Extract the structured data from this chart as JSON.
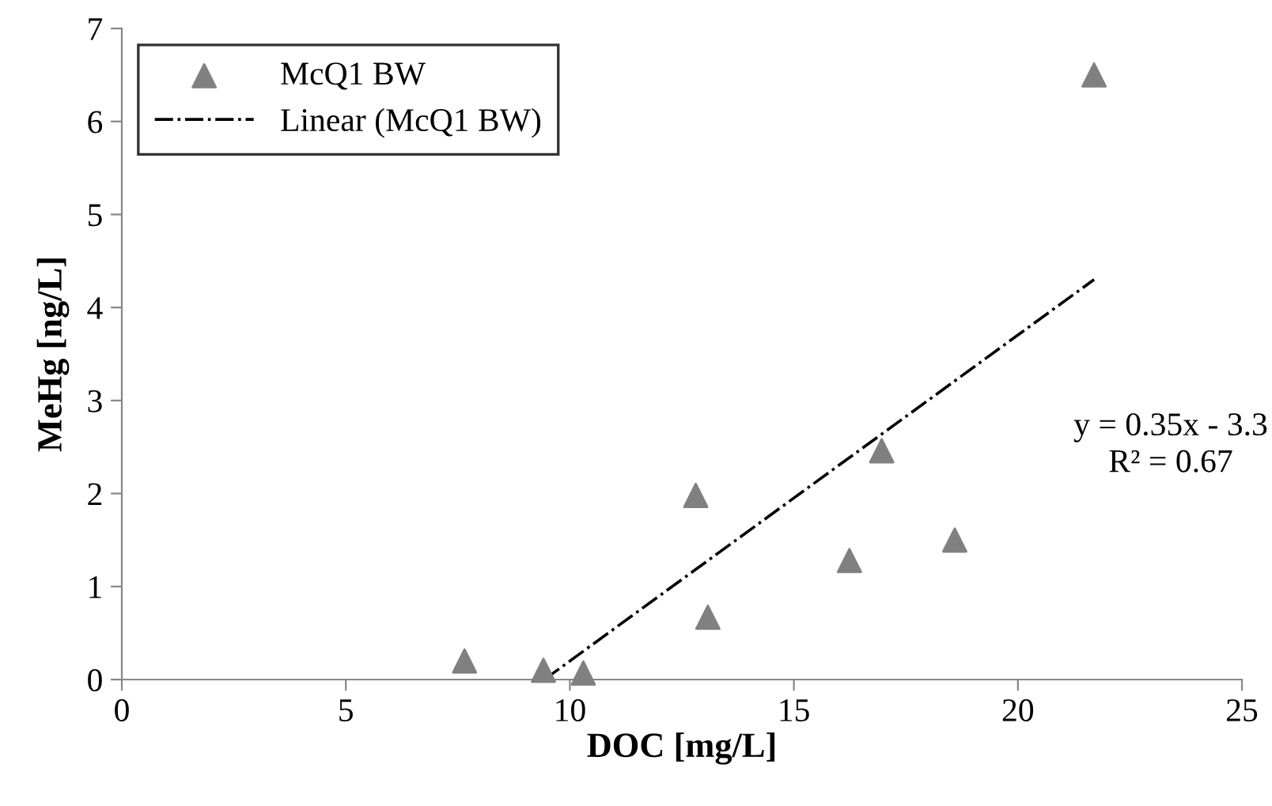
{
  "chart_data": {
    "type": "scatter",
    "xlabel": "DOC [mg/L]",
    "ylabel": "MeHg [ng/L]",
    "series": [
      {
        "name": "McQ1 BW",
        "color": "#808080",
        "marker": "triangle",
        "x": [
          7.65,
          9.41,
          10.3,
          12.81,
          13.08,
          16.24,
          16.96,
          18.59,
          21.7
        ],
        "values": [
          0.2,
          0.1,
          0.07,
          1.98,
          0.67,
          1.28,
          2.46,
          1.5,
          6.5
        ]
      },
      {
        "name": "Linear (McQ1 BW)",
        "type": "line",
        "color": "#000000",
        "marker": "none",
        "line_style": "dashdot",
        "x": [
          9.43,
          21.7
        ],
        "values": [
          0,
          4.3
        ]
      }
    ],
    "annotations": [
      "y = 0.35x - 3.3\nR² = 0.67"
    ],
    "xlim": [
      0,
      25
    ],
    "xticks": [
      0,
      5,
      10,
      15,
      20,
      25
    ],
    "ylim": [
      0,
      7
    ],
    "yticks": [
      0,
      1,
      2,
      3,
      4,
      5,
      6,
      7
    ],
    "grid": false,
    "legend": "top left"
  }
}
